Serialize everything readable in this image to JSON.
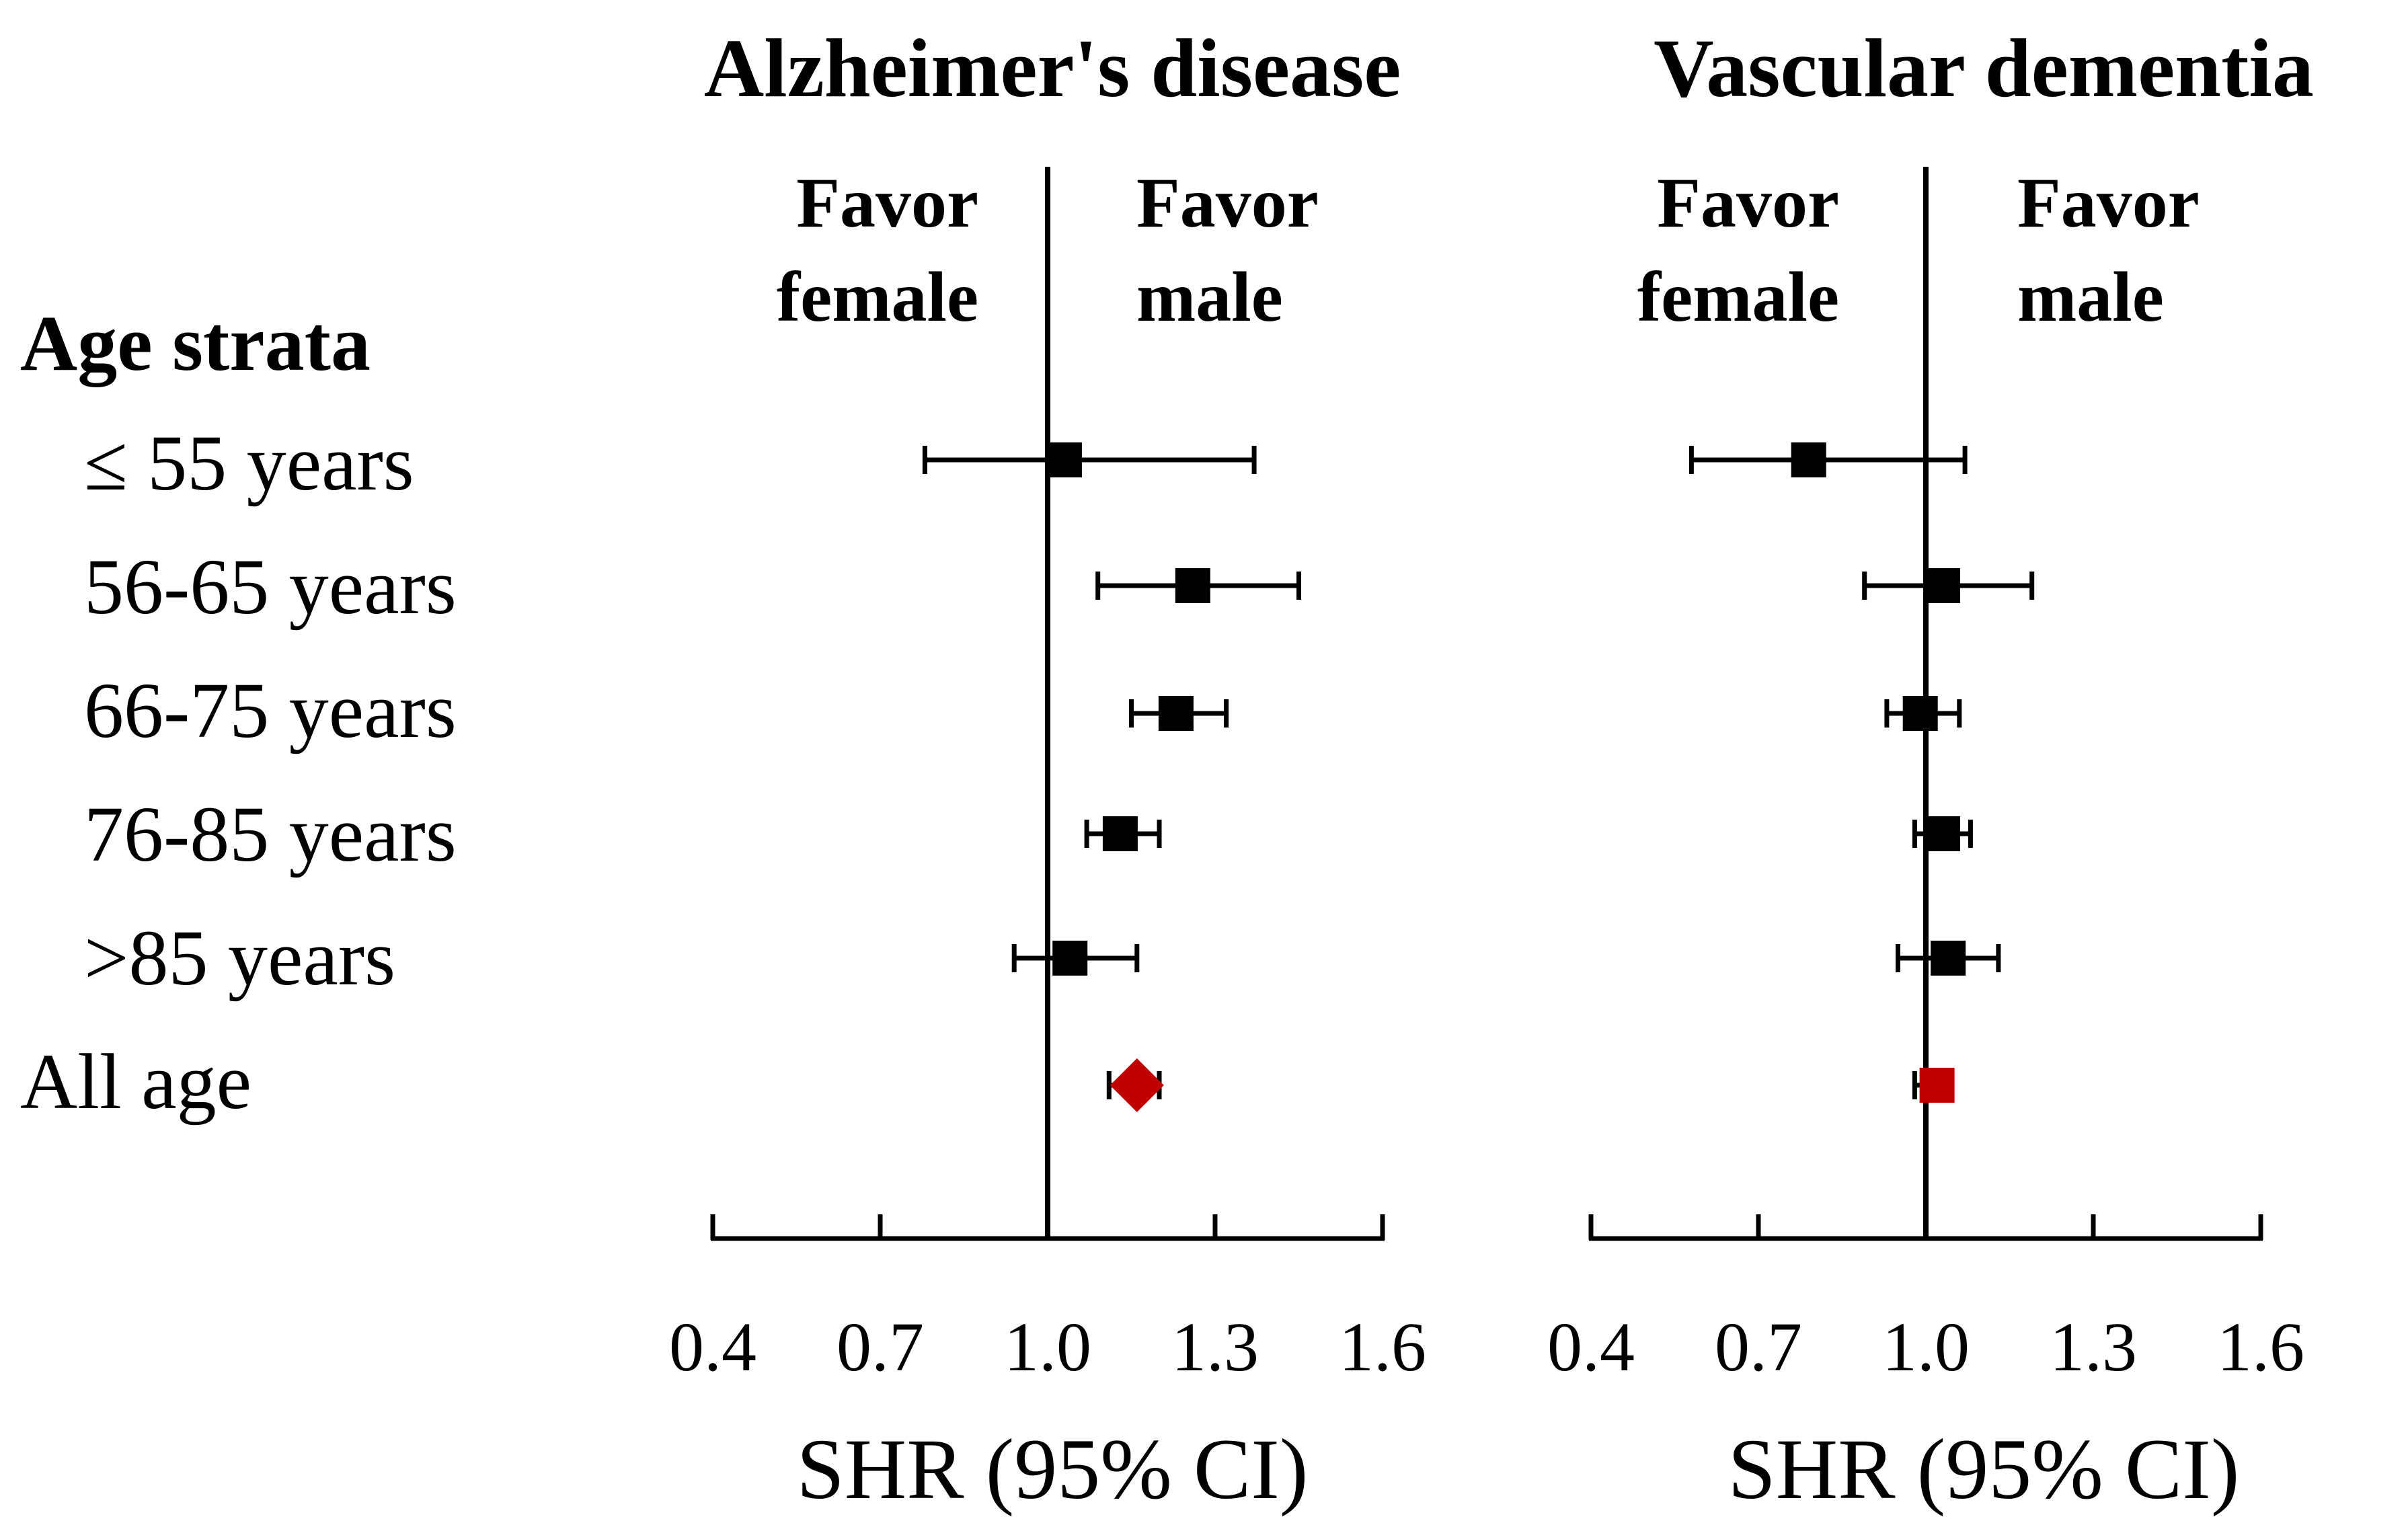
{
  "row_header": "Age strata",
  "rows": [
    "≤ 55 years",
    "56-65 years",
    "66-75 years",
    "76-85 years",
    ">85 years",
    "All age"
  ],
  "colors": {
    "point": "#000000",
    "overall": "#c00000",
    "line": "#000000"
  },
  "chart_data": [
    {
      "type": "forest",
      "title": "Alzheimer's disease",
      "left_label": [
        "Favor",
        "female"
      ],
      "right_label": [
        "Favor",
        "male"
      ],
      "xlabel": "SHR (95% CI)",
      "xlim": [
        0.4,
        1.6
      ],
      "xticks": [
        0.4,
        0.7,
        1.0,
        1.3,
        1.6
      ],
      "xtick_labels": [
        "0.4",
        "0.7",
        "1.0",
        "1.3",
        "1.6"
      ],
      "reference": 1.0,
      "overall_marker": "diamond",
      "points": [
        {
          "label": "≤ 55 years",
          "est": 1.03,
          "lo": 0.78,
          "hi": 1.37
        },
        {
          "label": "56-65 years",
          "est": 1.26,
          "lo": 1.09,
          "hi": 1.45
        },
        {
          "label": "66-75 years",
          "est": 1.23,
          "lo": 1.15,
          "hi": 1.32
        },
        {
          "label": "76-85 years",
          "est": 1.13,
          "lo": 1.07,
          "hi": 1.2
        },
        {
          "label": ">85 years",
          "est": 1.04,
          "lo": 0.94,
          "hi": 1.16
        },
        {
          "label": "All age",
          "est": 1.16,
          "lo": 1.11,
          "hi": 1.2
        }
      ]
    },
    {
      "type": "forest",
      "title": "Vascular dementia",
      "left_label": [
        "Favor",
        "female"
      ],
      "right_label": [
        "Favor",
        "male"
      ],
      "xlabel": "SHR (95% CI)",
      "xlim": [
        0.4,
        1.6
      ],
      "xticks": [
        0.4,
        0.7,
        1.0,
        1.3,
        1.6
      ],
      "xtick_labels": [
        "0.4",
        "0.7",
        "1.0",
        "1.3",
        "1.6"
      ],
      "reference": 1.0,
      "overall_marker": "square",
      "points": [
        {
          "label": "≤ 55 years",
          "est": 0.79,
          "lo": 0.58,
          "hi": 1.07
        },
        {
          "label": "56-65 years",
          "est": 1.03,
          "lo": 0.89,
          "hi": 1.19
        },
        {
          "label": "66-75 years",
          "est": 0.99,
          "lo": 0.93,
          "hi": 1.06
        },
        {
          "label": "76-85 years",
          "est": 1.03,
          "lo": 0.98,
          "hi": 1.08
        },
        {
          "label": ">85 years",
          "est": 1.04,
          "lo": 0.95,
          "hi": 1.13
        },
        {
          "label": "All age",
          "est": 1.02,
          "lo": 0.98,
          "hi": 1.04
        }
      ]
    }
  ]
}
